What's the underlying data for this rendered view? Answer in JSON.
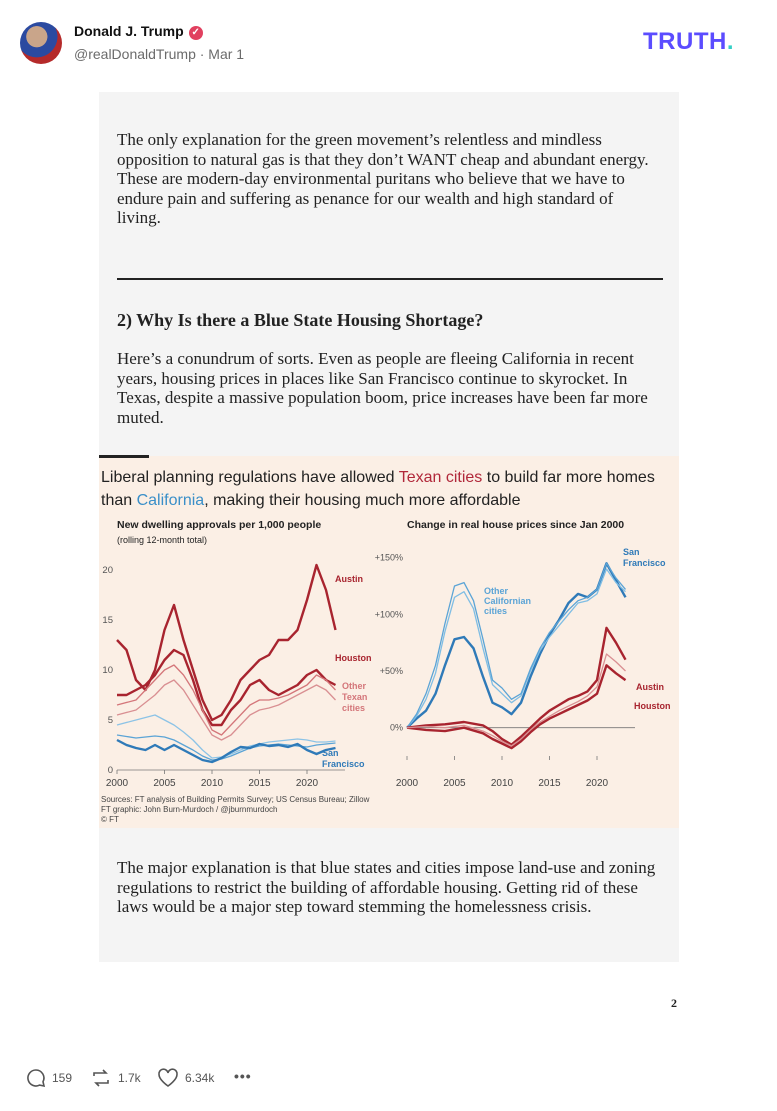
{
  "post": {
    "author": "Donald J. Trump",
    "handle_line": "@realDonaldTrump · Mar 1",
    "verified_mark": "✓",
    "logo_text": "TRUTH",
    "logo_dot": "."
  },
  "document": {
    "para1": "The only explanation for the green movement’s relentless and mindless opposition to natural gas is that they don’t WANT cheap and abundant energy. These are modern-day environmental puritans who believe that we have to endure pain and suffering as penance for our wealth and high standard of living.",
    "heading": "2) Why Is there a Blue State Housing Shortage?",
    "para2": "Here’s a conundrum of sorts. Even as people are fleeing California in recent years, housing prices in places like San Francisco continue to skyrocket. In Texas, despite a massive population boom, price increases have been far more muted.",
    "para3": "The major explanation is that blue states and cities impose land-use and zoning regulations to restrict the building of affordable housing. Getting rid of these laws would be a major step toward stemming the homelessness crisis.",
    "page_number": "2"
  },
  "chart_header": {
    "t1": "Liberal planning regulations have allowed ",
    "t2": "Texan cities",
    "t3": " to build far more homes than ",
    "t4": "California",
    "t5": ", making their housing much more affordable",
    "source1": "Sources: FT analysis of Building Permits Survey; US Census Bureau; Zillow",
    "source2": "FT graphic: John Burn-Murdoch / @jburnmurdoch",
    "source3": "© FT"
  },
  "chart_data": [
    {
      "type": "line",
      "title": "New dwelling approvals per 1,000 people",
      "subtitle": "(rolling 12-month total)",
      "x_ticks": [
        2000,
        2005,
        2010,
        2015,
        2020
      ],
      "y_ticks": [
        0,
        5,
        10,
        15,
        20
      ],
      "xlim": [
        2000,
        2024
      ],
      "ylim": [
        0,
        21
      ],
      "series": [
        {
          "name": "Austin",
          "color": "#a8242f",
          "width": 2.4,
          "x": [
            2000,
            2001,
            2002,
            2003,
            2004,
            2005,
            2006,
            2007,
            2008,
            2009,
            2010,
            2011,
            2012,
            2013,
            2014,
            2015,
            2016,
            2017,
            2018,
            2019,
            2020,
            2021,
            2022,
            2023
          ],
          "y": [
            13,
            12,
            9,
            8,
            10,
            14,
            16.5,
            13,
            10,
            7,
            5,
            5.5,
            7,
            9,
            10,
            11,
            11.5,
            13,
            13,
            14,
            17,
            20.5,
            18,
            14
          ]
        },
        {
          "name": "Houston",
          "color": "#a8242f",
          "width": 2.4,
          "x": [
            2000,
            2001,
            2002,
            2003,
            2004,
            2005,
            2006,
            2007,
            2008,
            2009,
            2010,
            2011,
            2012,
            2013,
            2014,
            2015,
            2016,
            2017,
            2018,
            2019,
            2020,
            2021,
            2022,
            2023
          ],
          "y": [
            7.5,
            7.5,
            8,
            8.5,
            9.5,
            11,
            12,
            11.5,
            9,
            6,
            4.5,
            4.5,
            6,
            7,
            8.5,
            9,
            8,
            7.5,
            8,
            8.5,
            9.5,
            10,
            9,
            8.5
          ]
        },
        {
          "name": "Other Texan cities",
          "color": "#d4767a",
          "width": 1.3,
          "x": [
            2000,
            2002,
            2004,
            2005,
            2006,
            2007,
            2008,
            2009,
            2010,
            2011,
            2012,
            2013,
            2014,
            2015,
            2016,
            2017,
            2018,
            2019,
            2020,
            2021,
            2022,
            2023
          ],
          "y": [
            6.5,
            7,
            9,
            10,
            10.5,
            9.5,
            8,
            6,
            4,
            3.5,
            4.5,
            5.5,
            6.5,
            7,
            7,
            7.2,
            7.5,
            8,
            8.5,
            9.5,
            9,
            8
          ]
        },
        {
          "name": "Other Texan cities",
          "color": "#d98f92",
          "width": 1.3,
          "x": [
            2000,
            2002,
            2004,
            2005,
            2006,
            2007,
            2008,
            2009,
            2010,
            2011,
            2012,
            2013,
            2014,
            2015,
            2016,
            2017,
            2018,
            2019,
            2020,
            2021,
            2022,
            2023
          ],
          "y": [
            5.5,
            6,
            7.5,
            8.5,
            9,
            8,
            6.5,
            5,
            3.5,
            3,
            3.5,
            4.5,
            5.5,
            6,
            6.2,
            6.5,
            7,
            7.5,
            8,
            8.5,
            8,
            7
          ]
        },
        {
          "name": "Other Californian cities",
          "color": "#8cc3e6",
          "width": 1.3,
          "x": [
            2000,
            2002,
            2004,
            2005,
            2006,
            2007,
            2008,
            2009,
            2010,
            2011,
            2012,
            2013,
            2014,
            2015,
            2016,
            2017,
            2018,
            2019,
            2020,
            2021,
            2022,
            2023
          ],
          "y": [
            4.5,
            5,
            5.5,
            5,
            4.5,
            3.8,
            3,
            2,
            1.2,
            1.3,
            1.6,
            2,
            2.4,
            2.6,
            2.8,
            2.9,
            3,
            3.1,
            3,
            2.8,
            2.8,
            2.9
          ]
        },
        {
          "name": "Other Californian cities",
          "color": "#5ba4d6",
          "width": 1.3,
          "x": [
            2000,
            2002,
            2004,
            2005,
            2006,
            2007,
            2008,
            2009,
            2010,
            2011,
            2012,
            2013,
            2014,
            2015,
            2016,
            2017,
            2018,
            2019,
            2020,
            2021,
            2022,
            2023
          ],
          "y": [
            3.5,
            3.2,
            3.4,
            3.3,
            3,
            2.5,
            2,
            1.4,
            1,
            1.1,
            1.4,
            1.8,
            2.2,
            2.4,
            2.5,
            2.6,
            2.5,
            2.4,
            2.3,
            2.5,
            2.6,
            2.7
          ]
        },
        {
          "name": "San Francisco",
          "color": "#2f7ab8",
          "width": 2.4,
          "x": [
            2000,
            2001,
            2002,
            2003,
            2004,
            2005,
            2006,
            2007,
            2008,
            2009,
            2010,
            2011,
            2012,
            2013,
            2014,
            2015,
            2016,
            2017,
            2018,
            2019,
            2020,
            2021,
            2022,
            2023
          ],
          "y": [
            3,
            2.5,
            2.2,
            2,
            2.5,
            2,
            2.5,
            2,
            1.5,
            1,
            0.8,
            1.2,
            1.8,
            2.3,
            2.2,
            2.6,
            2.4,
            2.5,
            2.3,
            2.6,
            2,
            1.6,
            2,
            2.2
          ]
        }
      ],
      "labels": [
        "Austin",
        "Houston",
        "Other",
        "Texan",
        "cities",
        "San",
        "Francisco"
      ]
    },
    {
      "type": "line",
      "title": "Change in real house prices since Jan 2000",
      "x_ticks": [
        2000,
        2005,
        2010,
        2015,
        2020
      ],
      "y_ticks": [
        "0%",
        "+50%",
        "+100%",
        "+150%"
      ],
      "xlim": [
        2000,
        2024
      ],
      "ylim": [
        -25,
        155
      ],
      "series": [
        {
          "name": "San Francisco",
          "color": "#2f7ab8",
          "width": 2.4,
          "x": [
            2000,
            2001,
            2002,
            2003,
            2004,
            2005,
            2006,
            2007,
            2008,
            2009,
            2010,
            2011,
            2012,
            2013,
            2014,
            2015,
            2016,
            2017,
            2018,
            2019,
            2020,
            2021,
            2022,
            2023
          ],
          "y": [
            0,
            8,
            15,
            30,
            55,
            78,
            80,
            70,
            45,
            22,
            18,
            12,
            22,
            45,
            65,
            82,
            95,
            110,
            118,
            115,
            122,
            145,
            130,
            115
          ]
        },
        {
          "name": "Other Californian cities",
          "color": "#7fbde4",
          "width": 1.3,
          "x": [
            2000,
            2001,
            2002,
            2003,
            2004,
            2005,
            2006,
            2007,
            2008,
            2009,
            2010,
            2011,
            2012,
            2013,
            2014,
            2015,
            2016,
            2017,
            2018,
            2019,
            2020,
            2021,
            2022,
            2023
          ],
          "y": [
            0,
            10,
            25,
            48,
            85,
            115,
            120,
            105,
            70,
            38,
            30,
            22,
            28,
            50,
            68,
            80,
            90,
            100,
            110,
            112,
            118,
            140,
            128,
            120
          ]
        },
        {
          "name": "Other Californian cities",
          "color": "#5ba4d6",
          "width": 1.3,
          "x": [
            2000,
            2001,
            2002,
            2003,
            2004,
            2005,
            2006,
            2007,
            2008,
            2009,
            2010,
            2011,
            2012,
            2013,
            2014,
            2015,
            2016,
            2017,
            2018,
            2019,
            2020,
            2021,
            2022,
            2023
          ],
          "y": [
            0,
            12,
            30,
            55,
            92,
            125,
            128,
            112,
            78,
            42,
            35,
            25,
            30,
            52,
            70,
            84,
            94,
            104,
            112,
            115,
            122,
            145,
            132,
            122
          ]
        },
        {
          "name": "Austin",
          "color": "#a8242f",
          "width": 2.4,
          "x": [
            2000,
            2002,
            2004,
            2006,
            2008,
            2009,
            2010,
            2011,
            2012,
            2013,
            2014,
            2015,
            2016,
            2017,
            2018,
            2019,
            2020,
            2021,
            2022,
            2023
          ],
          "y": [
            0,
            2,
            3,
            5,
            2,
            -3,
            -10,
            -15,
            -8,
            0,
            8,
            15,
            20,
            25,
            28,
            32,
            42,
            88,
            75,
            60
          ]
        },
        {
          "name": "Houston",
          "color": "#a8242f",
          "width": 2.4,
          "x": [
            2000,
            2002,
            2004,
            2006,
            2008,
            2009,
            2010,
            2011,
            2012,
            2013,
            2014,
            2015,
            2016,
            2017,
            2018,
            2019,
            2020,
            2021,
            2022,
            2023
          ],
          "y": [
            0,
            -2,
            -3,
            0,
            -5,
            -10,
            -14,
            -18,
            -12,
            -4,
            3,
            8,
            12,
            16,
            20,
            24,
            30,
            55,
            48,
            42
          ]
        },
        {
          "name": "Other Texan cities",
          "color": "#d98f92",
          "width": 1.3,
          "x": [
            2000,
            2002,
            2004,
            2006,
            2008,
            2009,
            2010,
            2011,
            2012,
            2013,
            2014,
            2015,
            2016,
            2017,
            2018,
            2019,
            2020,
            2021,
            2022,
            2023
          ],
          "y": [
            0,
            1,
            0,
            2,
            -3,
            -7,
            -12,
            -16,
            -10,
            -2,
            5,
            10,
            15,
            19,
            23,
            28,
            36,
            65,
            58,
            50
          ]
        }
      ],
      "labels": [
        "San",
        "Francisco",
        "Other",
        "Californian",
        "cities",
        "Austin",
        "Houston"
      ]
    }
  ],
  "actions": {
    "replies": "159",
    "retruths": "1.7k",
    "likes": "6.34k",
    "more": "•••"
  },
  "colors": {
    "accent_logo": "#5b4cff",
    "texan_red": "#b1283a",
    "california_blue": "#3a8fc8"
  }
}
